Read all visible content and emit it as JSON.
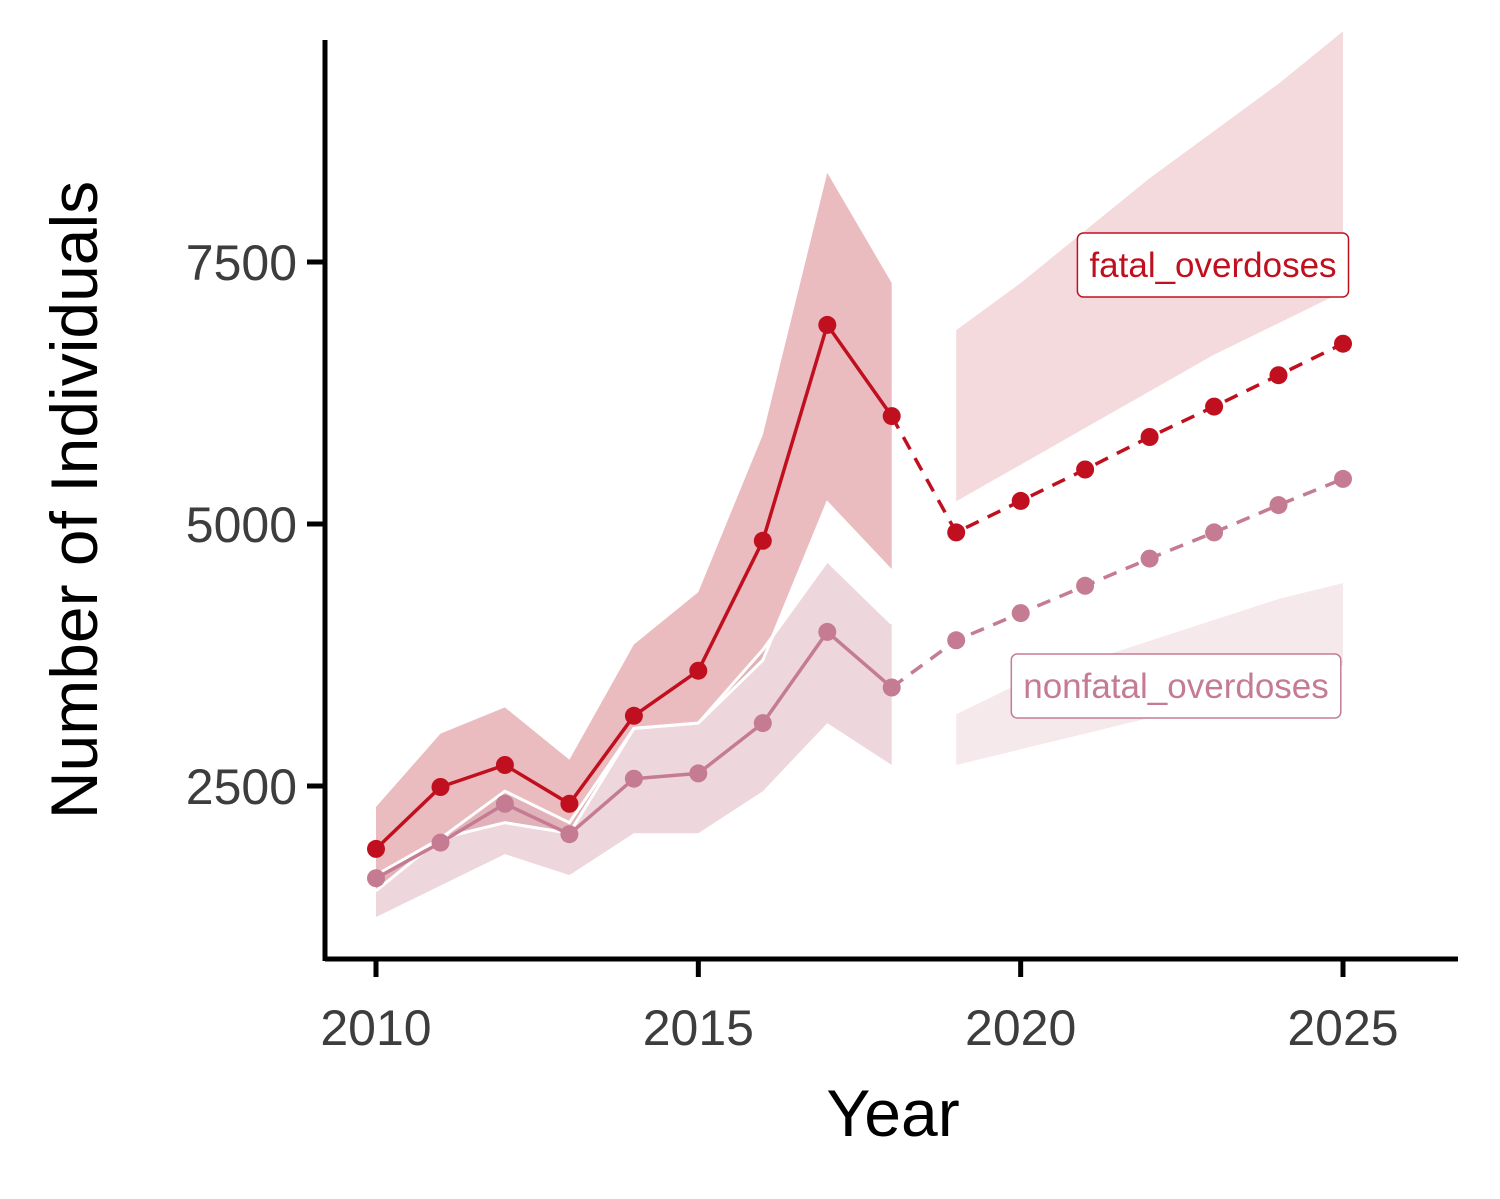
{
  "chart_data": {
    "type": "line",
    "title": "",
    "xlabel": "Year",
    "ylabel": "Number of Individuals",
    "xlim": [
      2009.2,
      2026.8
    ],
    "ylim": [
      800,
      9600
    ],
    "xticks": [
      2010,
      2015,
      2020,
      2025
    ],
    "yticks": [
      2500,
      5000,
      7500
    ],
    "grid": false,
    "legend": "direct labels",
    "series": [
      {
        "name": "fatal_overdoses",
        "color": "#C0101F",
        "ribbon_color": "#D36B72",
        "observed": {
          "x": [
            2010,
            2011,
            2012,
            2013,
            2014,
            2015,
            2016,
            2017,
            2018
          ],
          "y": [
            1900,
            2490,
            2700,
            2330,
            3170,
            3600,
            4840,
            6900,
            6030
          ],
          "lower": [
            1500,
            2000,
            2150,
            2050,
            3050,
            3100,
            3700,
            5200,
            4550
          ],
          "upper": [
            2300,
            3000,
            3250,
            2750,
            3850,
            4350,
            5850,
            8350,
            7300
          ]
        },
        "forecast": {
          "x": [
            2019,
            2020,
            2021,
            2022,
            2023,
            2024,
            2025
          ],
          "y": [
            4920,
            5220,
            5520,
            5830,
            6120,
            6420,
            6720
          ],
          "lower": [
            5200,
            5550,
            5900,
            6250,
            6600,
            6900,
            7200
          ],
          "upper": [
            6850,
            7300,
            7800,
            8300,
            8750,
            9200,
            9700
          ]
        }
      },
      {
        "name": "nonfatal_overdoses",
        "color": "#C57C93",
        "ribbon_color": "#D8A7B4",
        "observed": {
          "x": [
            2010,
            2011,
            2012,
            2013,
            2014,
            2015,
            2016,
            2017,
            2018
          ],
          "y": [
            1620,
            1960,
            2330,
            2040,
            2570,
            2620,
            3100,
            3970,
            3440
          ],
          "lower": [
            1250,
            1550,
            1850,
            1650,
            2050,
            2050,
            2450,
            3100,
            2700
          ],
          "upper": [
            1650,
            2000,
            2450,
            2150,
            3050,
            3100,
            3800,
            4650,
            4050
          ]
        },
        "forecast": {
          "x": [
            2019,
            2020,
            2021,
            2022,
            2023,
            2024,
            2025
          ],
          "y": [
            3890,
            4150,
            4410,
            4670,
            4920,
            5180,
            5430
          ],
          "lower": [
            2700,
            2850,
            3000,
            3150,
            3300,
            3450,
            3650
          ],
          "upper": [
            3200,
            3500,
            3700,
            3900,
            4100,
            4300,
            4450
          ]
        }
      }
    ]
  }
}
